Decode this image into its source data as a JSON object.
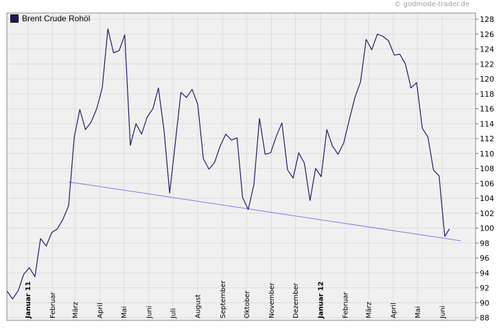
{
  "copyright": "© godmode-trader.de",
  "legend": {
    "label": "Brent Crude Rohöl",
    "color": "#1a1a66"
  },
  "chart_data": {
    "type": "line",
    "title": "",
    "xlabel": "",
    "ylabel": "",
    "ylim": [
      88,
      129
    ],
    "yticks": [
      88,
      90,
      92,
      94,
      96,
      98,
      100,
      102,
      104,
      106,
      108,
      110,
      112,
      114,
      116,
      118,
      120,
      122,
      124,
      126,
      128
    ],
    "grid": true,
    "legend_position": "top-left",
    "x_axis": {
      "start": "2010-12-06",
      "end": "2012-06-10",
      "labels": [
        {
          "date": "2011-01-01",
          "label": "Januar 11",
          "bold": true
        },
        {
          "date": "2011-02-01",
          "label": "Februar",
          "bold": false
        },
        {
          "date": "2011-03-01",
          "label": "März",
          "bold": false
        },
        {
          "date": "2011-04-01",
          "label": "April",
          "bold": false
        },
        {
          "date": "2011-05-01",
          "label": "Mai",
          "bold": false
        },
        {
          "date": "2011-06-01",
          "label": "Juni",
          "bold": false
        },
        {
          "date": "2011-07-01",
          "label": "Juli",
          "bold": false
        },
        {
          "date": "2011-08-01",
          "label": "August",
          "bold": false
        },
        {
          "date": "2011-09-01",
          "label": "September",
          "bold": false
        },
        {
          "date": "2011-10-01",
          "label": "Oktober",
          "bold": false
        },
        {
          "date": "2011-11-01",
          "label": "November",
          "bold": false
        },
        {
          "date": "2011-12-01",
          "label": "Dezember",
          "bold": false
        },
        {
          "date": "2012-01-01",
          "label": "Januar 12",
          "bold": true
        },
        {
          "date": "2012-02-01",
          "label": "Februar",
          "bold": false
        },
        {
          "date": "2012-03-01",
          "label": "März",
          "bold": false
        },
        {
          "date": "2012-04-01",
          "label": "April",
          "bold": false
        },
        {
          "date": "2012-05-01",
          "label": "Mai",
          "bold": false
        },
        {
          "date": "2012-06-01",
          "label": "Juni",
          "bold": false
        }
      ]
    },
    "series": [
      {
        "color": "#1a1a66",
        "points": [
          [
            "2010-12-06",
            91.6
          ],
          [
            "2010-12-13",
            90.5
          ],
          [
            "2010-12-20",
            91.6
          ],
          [
            "2010-12-27",
            93.8
          ],
          [
            "2011-01-03",
            94.7
          ],
          [
            "2011-01-10",
            93.5
          ],
          [
            "2011-01-17",
            98.6
          ],
          [
            "2011-01-24",
            97.6
          ],
          [
            "2011-01-31",
            99.4
          ],
          [
            "2011-02-07",
            99.9
          ],
          [
            "2011-02-14",
            101.2
          ],
          [
            "2011-02-21",
            103.0
          ],
          [
            "2011-02-28",
            112.2
          ],
          [
            "2011-03-07",
            115.9
          ],
          [
            "2011-03-14",
            113.2
          ],
          [
            "2011-03-21",
            114.2
          ],
          [
            "2011-03-28",
            116.0
          ],
          [
            "2011-04-04",
            118.8
          ],
          [
            "2011-04-11",
            126.7
          ],
          [
            "2011-04-18",
            123.5
          ],
          [
            "2011-04-25",
            123.8
          ],
          [
            "2011-05-02",
            125.9
          ],
          [
            "2011-05-09",
            111.1
          ],
          [
            "2011-05-16",
            114.0
          ],
          [
            "2011-05-23",
            112.6
          ],
          [
            "2011-05-30",
            114.9
          ],
          [
            "2011-06-06",
            116.0
          ],
          [
            "2011-06-13",
            118.8
          ],
          [
            "2011-06-20",
            113.1
          ],
          [
            "2011-06-27",
            104.7
          ],
          [
            "2011-07-04",
            111.4
          ],
          [
            "2011-07-11",
            118.2
          ],
          [
            "2011-07-18",
            117.5
          ],
          [
            "2011-07-25",
            118.6
          ],
          [
            "2011-08-01",
            116.6
          ],
          [
            "2011-08-08",
            109.3
          ],
          [
            "2011-08-15",
            107.9
          ],
          [
            "2011-08-22",
            108.8
          ],
          [
            "2011-08-29",
            111.0
          ],
          [
            "2011-09-05",
            112.6
          ],
          [
            "2011-09-12",
            111.8
          ],
          [
            "2011-09-19",
            112.1
          ],
          [
            "2011-09-26",
            104.1
          ],
          [
            "2011-10-03",
            102.5
          ],
          [
            "2011-10-10",
            105.8
          ],
          [
            "2011-10-17",
            114.7
          ],
          [
            "2011-10-24",
            109.9
          ],
          [
            "2011-10-31",
            110.1
          ],
          [
            "2011-11-07",
            112.3
          ],
          [
            "2011-11-14",
            114.1
          ],
          [
            "2011-11-21",
            107.8
          ],
          [
            "2011-11-28",
            106.7
          ],
          [
            "2011-12-05",
            110.1
          ],
          [
            "2011-12-12",
            108.7
          ],
          [
            "2011-12-19",
            103.7
          ],
          [
            "2011-12-26",
            108.0
          ],
          [
            "2012-01-02",
            106.9
          ],
          [
            "2012-01-09",
            113.2
          ],
          [
            "2012-01-16",
            111.0
          ],
          [
            "2012-01-23",
            109.9
          ],
          [
            "2012-01-30",
            111.4
          ],
          [
            "2012-02-06",
            114.5
          ],
          [
            "2012-02-13",
            117.5
          ],
          [
            "2012-02-20",
            119.6
          ],
          [
            "2012-02-27",
            125.3
          ],
          [
            "2012-03-05",
            123.9
          ],
          [
            "2012-03-12",
            126.0
          ],
          [
            "2012-03-19",
            125.7
          ],
          [
            "2012-03-26",
            125.1
          ],
          [
            "2012-04-02",
            123.2
          ],
          [
            "2012-04-09",
            123.3
          ],
          [
            "2012-04-16",
            122.0
          ],
          [
            "2012-04-23",
            118.8
          ],
          [
            "2012-04-30",
            119.5
          ],
          [
            "2012-05-07",
            113.4
          ],
          [
            "2012-05-14",
            112.2
          ],
          [
            "2012-05-21",
            107.8
          ],
          [
            "2012-05-28",
            107.0
          ],
          [
            "2012-06-04",
            98.9
          ],
          [
            "2012-06-10",
            99.9
          ]
        ]
      }
    ],
    "trendline": {
      "color": "#7a7aee",
      "points": [
        [
          "2011-02-21",
          106.2
        ],
        [
          "2012-06-24",
          98.3
        ]
      ]
    }
  }
}
